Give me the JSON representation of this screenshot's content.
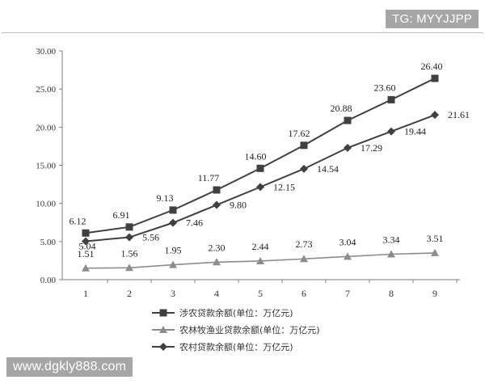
{
  "watermarks": {
    "top": "TG: MYYJJPP",
    "bottom": "www.dgkly888.com"
  },
  "chart_data": {
    "type": "line",
    "categories": [
      "1",
      "2",
      "3",
      "4",
      "5",
      "6",
      "7",
      "8",
      "9"
    ],
    "ylim": [
      0,
      30
    ],
    "yticks": [
      "0.00",
      "5.00",
      "10.00",
      "15.00",
      "20.00",
      "25.00",
      "30.00"
    ],
    "grid": false,
    "legend_position": "bottom",
    "series": [
      {
        "name": "涉农贷款余额(单位：万亿元)",
        "marker": "square",
        "color": "#404040",
        "values": [
          6.12,
          6.91,
          9.13,
          11.77,
          14.6,
          17.62,
          20.88,
          23.6,
          26.4
        ],
        "labels": [
          "6.12",
          "6.91",
          "9.13",
          "11.77",
          "14.60",
          "17.62",
          "20.88",
          "23.60",
          "26.40"
        ]
      },
      {
        "name": "农林牧渔业贷款余额(单位：万亿元)",
        "marker": "triangle",
        "color": "#8c8c8c",
        "values": [
          1.51,
          1.56,
          1.95,
          2.3,
          2.44,
          2.73,
          3.04,
          3.34,
          3.51
        ],
        "labels": [
          "1.51",
          "1.56",
          "1.95",
          "2.30",
          "2.44",
          "2.73",
          "3.04",
          "3.34",
          "3.51"
        ]
      },
      {
        "name": "农村贷款余额(单位：万亿元)",
        "marker": "diamond",
        "color": "#404040",
        "values": [
          5.04,
          5.56,
          7.46,
          9.8,
          12.15,
          14.54,
          17.29,
          19.44,
          21.61
        ],
        "labels": [
          "5.04",
          "5.56",
          "7.46",
          "9.80",
          "12.15",
          "14.54",
          "17.29",
          "19.44",
          "21.61"
        ]
      }
    ]
  }
}
